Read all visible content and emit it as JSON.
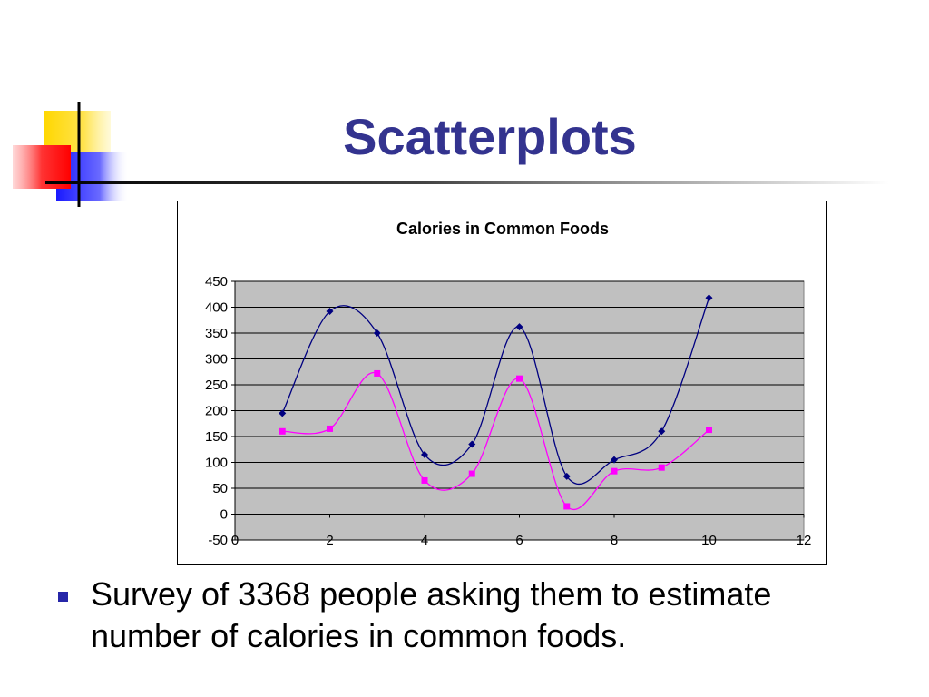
{
  "slide": {
    "title": "Scatterplots",
    "bullet": "Survey of 3368 people asking them to estimate number of calories in common foods."
  },
  "colors": {
    "title": "#33338f",
    "series_1": "#000080",
    "series_2": "#ff00ff",
    "plot_background": "#c0c0c0",
    "bullet": "#2626a8"
  },
  "chart_data": {
    "type": "scatter",
    "title": "Calories in Common Foods",
    "xlabel": "",
    "ylabel": "",
    "xlim": [
      0,
      12
    ],
    "ylim": [
      -50,
      450
    ],
    "xticks": [
      0,
      2,
      4,
      6,
      8,
      10,
      12
    ],
    "yticks": [
      -50,
      0,
      50,
      100,
      150,
      200,
      250,
      300,
      350,
      400,
      450
    ],
    "grid": "horizontal",
    "smoothed_lines": true,
    "legend": "none",
    "series": [
      {
        "marker": "diamond",
        "x": [
          1,
          2,
          3,
          4,
          5,
          6,
          7,
          8,
          9,
          10
        ],
        "y": [
          195,
          392,
          350,
          115,
          135,
          362,
          73,
          105,
          160,
          418
        ]
      },
      {
        "marker": "square",
        "x": [
          1,
          2,
          3,
          4,
          5,
          6,
          7,
          8,
          9,
          10
        ],
        "y": [
          160,
          165,
          272,
          65,
          78,
          262,
          15,
          83,
          90,
          163
        ]
      }
    ]
  }
}
